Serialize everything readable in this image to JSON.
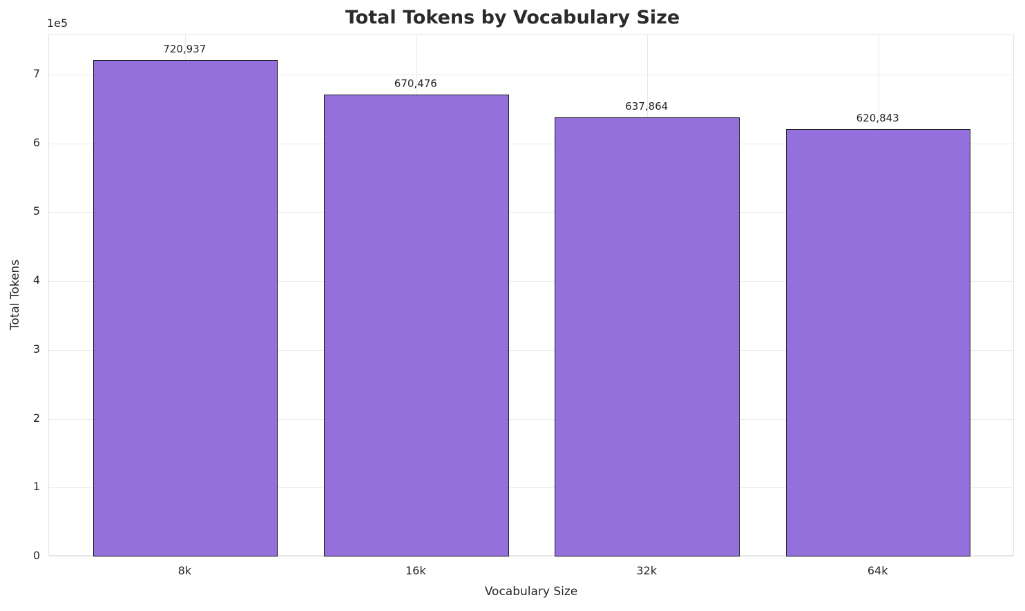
{
  "chart_data": {
    "type": "bar",
    "title": "Total Tokens by Vocabulary Size",
    "xlabel": "Vocabulary Size",
    "ylabel": "Total Tokens",
    "y_offset_text": "1e5",
    "categories": [
      "8k",
      "16k",
      "32k",
      "64k"
    ],
    "values": [
      720937,
      670476,
      637864,
      620843
    ],
    "value_labels": [
      "720,937",
      "670,476",
      "637,864",
      "620,843"
    ],
    "ylim": [
      0,
      757000
    ],
    "xlim": [
      -0.59,
      3.59
    ],
    "yticks": [
      0,
      100000,
      200000,
      300000,
      400000,
      500000,
      600000,
      700000
    ],
    "ytick_labels": [
      "0",
      "1",
      "2",
      "3",
      "4",
      "5",
      "6",
      "7"
    ],
    "grid": true,
    "legend": "none",
    "bar_width": 0.8,
    "bar_color": "#9370DB",
    "bar_edge_color": "#1a1a1a"
  }
}
